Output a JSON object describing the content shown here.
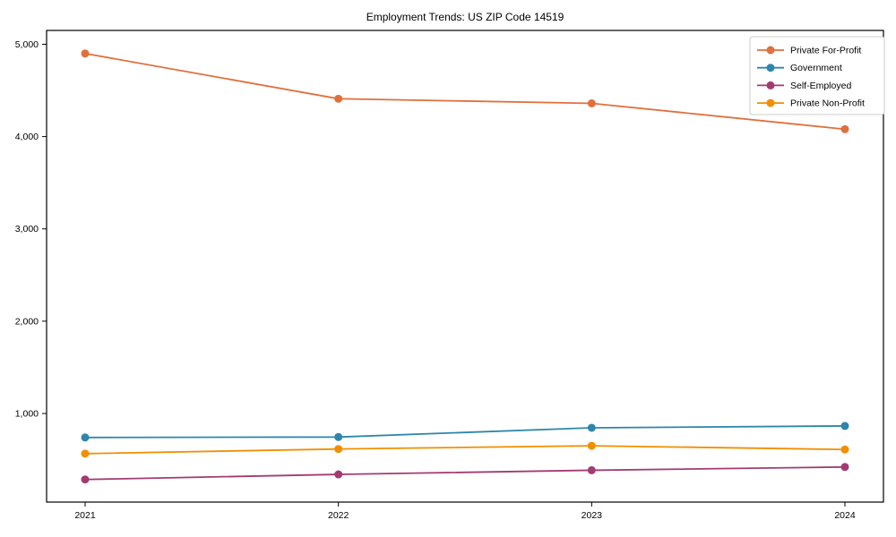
{
  "title": "Employment Trends: US ZIP Code 14519",
  "chart_data": {
    "type": "line",
    "title": "Employment Trends: US ZIP Code 14519",
    "xlabel": "",
    "ylabel": "",
    "x": [
      "2021",
      "2022",
      "2023",
      "2024"
    ],
    "series": [
      {
        "name": "Private For-Profit",
        "color": "#E0703C",
        "values": [
          4900,
          4410,
          4360,
          4080
        ]
      },
      {
        "name": "Government",
        "color": "#2E86AB",
        "values": [
          740,
          745,
          845,
          865
        ]
      },
      {
        "name": "Self-Employed",
        "color": "#A23B72",
        "values": [
          285,
          340,
          385,
          420
        ]
      },
      {
        "name": "Private Non-Profit",
        "color": "#F18F01",
        "values": [
          565,
          615,
          650,
          610
        ]
      }
    ],
    "ylim": [
      40,
      5150
    ],
    "yticks": [
      1000,
      2000,
      3000,
      4000,
      5000
    ],
    "ytick_labels": [
      "1,000",
      "2,000",
      "3,000",
      "4,000",
      "5,000"
    ],
    "grid": false,
    "marker": "o",
    "legend_position": "upper right"
  }
}
